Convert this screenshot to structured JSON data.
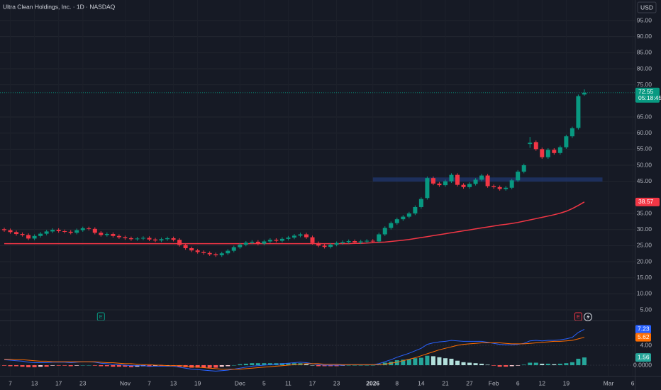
{
  "chart_data": {
    "type": "candlestick",
    "title": "Ultra Clean Holdings, Inc. · 1D · NASDAQ",
    "currency": "USD",
    "countdown": "05:18:45",
    "categories": [
      null,
      "7",
      null,
      null,
      null,
      "13",
      null,
      null,
      null,
      "17",
      null,
      null,
      null,
      "23",
      null,
      null,
      null,
      null,
      null,
      null,
      "Nov",
      null,
      null,
      null,
      "7",
      null,
      null,
      null,
      "13",
      null,
      null,
      null,
      "19",
      null,
      null,
      null,
      null,
      null,
      null,
      "Dec",
      null,
      null,
      null,
      "5",
      null,
      null,
      null,
      "11",
      null,
      null,
      null,
      "17",
      null,
      null,
      null,
      "23",
      null,
      null,
      null,
      null,
      null,
      "2026",
      null,
      null,
      null,
      "8",
      null,
      null,
      null,
      "14",
      null,
      null,
      null,
      "21",
      null,
      null,
      null,
      "27",
      null,
      null,
      null,
      "Feb",
      null,
      null,
      null,
      "6",
      null,
      null,
      null,
      "12",
      null,
      null,
      null,
      "19",
      null,
      null,
      null,
      null,
      null,
      null,
      "Mar",
      null,
      null,
      null,
      "6"
    ],
    "open": [
      30.1,
      29.8,
      29.2,
      28.6,
      28.3,
      27.2,
      28.0,
      28.7,
      29.4,
      29.9,
      29.5,
      29.3,
      29.0,
      29.8,
      30.4,
      30.2,
      29.0,
      28.3,
      28.6,
      28.0,
      27.6,
      27.3,
      27.0,
      27.2,
      27.4,
      26.9,
      26.6,
      27.0,
      27.3,
      26.8,
      25.2,
      24.2,
      23.5,
      23.0,
      22.7,
      22.3,
      22.0,
      22.6,
      23.4,
      24.5,
      25.3,
      25.9,
      26.2,
      25.6,
      26.3,
      26.8,
      26.5,
      27.1,
      27.5,
      28.1,
      28.5,
      27.6,
      25.8,
      25.0,
      24.6,
      25.3,
      25.8,
      26.1,
      26.4,
      26.0,
      26.3,
      26.5,
      26.3,
      28.5,
      30.5,
      32.0,
      33.2,
      34.0,
      35.0,
      37.0,
      39.8,
      46.0,
      44.3,
      43.8,
      45.0,
      47.0,
      43.9,
      43.2,
      44.2,
      45.5,
      46.8,
      43.5,
      43.2,
      42.6,
      43.0,
      45.3,
      48.0,
      56.6,
      57.2,
      55.0,
      52.5,
      54.8,
      53.8,
      55.6,
      59.0,
      61.6,
      72.0,
      null,
      null,
      null,
      null,
      null,
      null,
      null,
      null
    ],
    "high": [
      30.6,
      30.3,
      29.7,
      29.1,
      28.8,
      28.5,
      29.2,
      29.9,
      30.4,
      30.4,
      30.0,
      29.8,
      30.3,
      30.9,
      30.9,
      30.7,
      29.5,
      29.1,
      29.1,
      28.5,
      28.1,
      27.8,
      27.7,
      27.9,
      27.9,
      27.4,
      27.5,
      27.8,
      27.8,
      27.3,
      25.7,
      24.7,
      24.0,
      23.5,
      23.2,
      22.8,
      23.1,
      23.9,
      25.0,
      25.8,
      26.4,
      26.7,
      26.7,
      26.8,
      27.3,
      27.3,
      27.6,
      28.0,
      28.6,
      29.0,
      29.0,
      28.1,
      26.3,
      25.5,
      25.8,
      26.3,
      26.6,
      26.9,
      26.9,
      26.8,
      27.0,
      27.0,
      29.0,
      31.0,
      32.5,
      33.7,
      34.5,
      35.5,
      37.5,
      40.0,
      46.5,
      46.5,
      44.8,
      45.5,
      47.5,
      47.5,
      44.4,
      44.7,
      46.0,
      47.3,
      47.3,
      44.0,
      43.7,
      43.5,
      45.8,
      48.5,
      50.5,
      58.8,
      57.7,
      55.5,
      55.3,
      55.3,
      56.1,
      59.5,
      62.0,
      72.0,
      73.6,
      null,
      null,
      null,
      null,
      null,
      null,
      null,
      null
    ],
    "low": [
      29.3,
      28.7,
      28.1,
      27.8,
      26.7,
      26.7,
      27.5,
      28.2,
      28.9,
      29.0,
      28.8,
      28.5,
      28.5,
      29.3,
      29.7,
      28.5,
      27.8,
      27.8,
      27.5,
      27.1,
      26.8,
      26.5,
      26.5,
      26.7,
      26.4,
      26.1,
      26.1,
      26.5,
      26.3,
      24.7,
      23.7,
      23.0,
      22.5,
      22.2,
      21.8,
      21.5,
      21.5,
      22.1,
      22.9,
      24.0,
      24.8,
      25.4,
      25.1,
      25.1,
      25.8,
      26.0,
      26.0,
      26.6,
      27.0,
      27.6,
      27.1,
      25.3,
      24.5,
      24.1,
      24.1,
      24.8,
      25.3,
      25.6,
      25.5,
      25.5,
      25.8,
      25.8,
      25.8,
      28.0,
      30.0,
      31.5,
      32.7,
      33.5,
      34.5,
      36.5,
      39.3,
      43.8,
      43.3,
      43.3,
      44.5,
      43.4,
      42.7,
      42.7,
      43.7,
      45.0,
      43.0,
      42.7,
      42.1,
      42.1,
      42.5,
      44.8,
      47.5,
      55.4,
      54.5,
      52.0,
      52.0,
      53.3,
      53.3,
      55.1,
      58.5,
      61.1,
      71.6,
      null,
      null,
      null,
      null,
      null,
      null,
      null,
      null
    ],
    "close": [
      29.8,
      29.2,
      28.6,
      28.3,
      27.2,
      28.0,
      28.7,
      29.4,
      29.9,
      29.5,
      29.3,
      29.0,
      29.8,
      30.4,
      30.2,
      29.0,
      28.3,
      28.6,
      28.0,
      27.6,
      27.3,
      27.0,
      27.2,
      27.4,
      26.9,
      26.6,
      27.0,
      27.3,
      26.8,
      25.2,
      24.2,
      23.5,
      23.0,
      22.7,
      22.3,
      22.0,
      22.6,
      23.4,
      24.5,
      25.3,
      25.9,
      26.2,
      25.6,
      26.3,
      26.8,
      26.5,
      27.1,
      27.5,
      28.1,
      28.5,
      27.6,
      25.8,
      25.0,
      24.6,
      25.3,
      25.8,
      26.1,
      26.4,
      26.0,
      26.3,
      26.5,
      26.3,
      28.5,
      30.5,
      32.0,
      33.2,
      34.0,
      35.0,
      37.0,
      39.5,
      46.0,
      44.3,
      43.8,
      45.0,
      47.0,
      43.9,
      43.2,
      44.2,
      45.5,
      46.8,
      43.5,
      43.2,
      42.6,
      43.0,
      45.3,
      48.0,
      50.0,
      57.0,
      55.0,
      52.5,
      54.8,
      53.8,
      55.6,
      59.0,
      61.5,
      71.5,
      72.55,
      null,
      null,
      null,
      null,
      null,
      null,
      null,
      null
    ],
    "up_color": "#089981",
    "down_color": "#f23645",
    "ylim": [
      1.7,
      101.4
    ],
    "yticks": [
      {
        "value": 5,
        "label": "5.00"
      },
      {
        "value": 10,
        "label": "10.00"
      },
      {
        "value": 15,
        "label": "15.00"
      },
      {
        "value": 20,
        "label": "20.00"
      },
      {
        "value": 25,
        "label": "25.00"
      },
      {
        "value": 30,
        "label": "30.00"
      },
      {
        "value": 35,
        "label": "35.00"
      },
      {
        "value": 45,
        "label": "45.00"
      },
      {
        "value": 50,
        "label": "50.00"
      },
      {
        "value": 55,
        "label": "55.00"
      },
      {
        "value": 60,
        "label": "60.00"
      },
      {
        "value": 65,
        "label": "65.00"
      },
      {
        "value": 75,
        "label": "75.00"
      },
      {
        "value": 80,
        "label": "80.00"
      },
      {
        "value": 85,
        "label": "85.00"
      },
      {
        "value": 90,
        "label": "90.00"
      },
      {
        "value": 95,
        "label": "95.00"
      }
    ],
    "grid": true,
    "ma": {
      "color": "#f23645",
      "values": [
        25.6,
        25.6,
        25.6,
        25.6,
        25.6,
        25.6,
        25.6,
        25.6,
        25.6,
        25.6,
        25.6,
        25.6,
        25.6,
        25.6,
        25.6,
        25.6,
        25.6,
        25.6,
        25.6,
        25.6,
        25.6,
        25.6,
        25.6,
        25.6,
        25.6,
        25.6,
        25.6,
        25.6,
        25.6,
        25.6,
        25.6,
        25.6,
        25.6,
        25.6,
        25.6,
        25.6,
        25.6,
        25.6,
        25.6,
        25.6,
        25.6,
        25.6,
        25.6,
        25.6,
        25.6,
        25.6,
        25.6,
        25.6,
        25.6,
        25.6,
        25.6,
        25.6,
        25.6,
        25.6,
        25.6,
        25.6,
        25.6,
        25.6,
        25.7,
        25.7,
        25.8,
        25.9,
        26.0,
        26.1,
        26.3,
        26.5,
        26.7,
        26.9,
        27.2,
        27.5,
        27.8,
        28.1,
        28.4,
        28.7,
        29.0,
        29.3,
        29.6,
        29.9,
        30.2,
        30.5,
        30.8,
        31.1,
        31.4,
        31.6,
        31.9,
        32.2,
        32.6,
        33.0,
        33.4,
        33.8,
        34.2,
        34.6,
        35.1,
        35.7,
        36.5,
        37.5,
        38.57,
        null,
        null,
        null,
        null,
        null,
        null,
        null,
        null
      ]
    },
    "zone": {
      "low": 44.9,
      "high": 46.2,
      "start": 61,
      "end": 99,
      "color": "#1f3466"
    },
    "events": [
      {
        "label": "E",
        "index": 16,
        "color": "#089981"
      },
      {
        "label": "E",
        "index": 95,
        "color": "#f23645"
      }
    ],
    "macd": {
      "ylim": [
        -2.14,
        8.57
      ],
      "yticks": [
        {
          "value": 4,
          "label": "4.00"
        },
        {
          "value": 0,
          "label": "0.0000"
        }
      ],
      "series": [
        {
          "color": "#2962ff",
          "values": [
            1.1,
            1.0,
            0.9,
            0.8,
            0.6,
            0.5,
            0.5,
            0.5,
            0.6,
            0.6,
            0.6,
            0.5,
            0.6,
            0.7,
            0.7,
            0.6,
            0.4,
            0.3,
            0.2,
            0.1,
            0.0,
            -0.1,
            -0.1,
            -0.1,
            -0.2,
            -0.2,
            -0.2,
            -0.2,
            -0.2,
            -0.4,
            -0.6,
            -0.8,
            -0.9,
            -1.0,
            -1.1,
            -1.2,
            -1.1,
            -1.0,
            -0.8,
            -0.6,
            -0.4,
            -0.2,
            -0.1,
            0.0,
            0.1,
            0.2,
            0.3,
            0.4,
            0.5,
            0.6,
            0.5,
            0.3,
            0.1,
            0.0,
            0.0,
            0.0,
            0.0,
            0.1,
            0.1,
            0.1,
            0.1,
            0.1,
            0.3,
            0.7,
            1.1,
            1.6,
            2.0,
            2.4,
            2.9,
            3.4,
            4.2,
            4.5,
            4.7,
            4.8,
            5.0,
            4.9,
            4.8,
            4.8,
            4.8,
            4.8,
            4.6,
            4.4,
            4.2,
            4.1,
            4.1,
            4.2,
            4.4,
            4.9,
            5.0,
            4.9,
            5.0,
            5.0,
            5.1,
            5.3,
            5.6,
            6.6,
            7.23,
            null,
            null,
            null,
            null,
            null,
            null,
            null,
            null
          ]
        },
        {
          "color": "#ff6d00",
          "values": [
            1.2,
            1.2,
            1.1,
            1.1,
            1.0,
            0.9,
            0.8,
            0.8,
            0.7,
            0.7,
            0.7,
            0.7,
            0.7,
            0.7,
            0.7,
            0.7,
            0.6,
            0.5,
            0.5,
            0.4,
            0.3,
            0.3,
            0.2,
            0.1,
            0.1,
            0.0,
            0.0,
            -0.1,
            -0.1,
            -0.1,
            -0.2,
            -0.3,
            -0.4,
            -0.5,
            -0.6,
            -0.7,
            -0.8,
            -0.8,
            -0.8,
            -0.8,
            -0.7,
            -0.6,
            -0.5,
            -0.4,
            -0.3,
            -0.2,
            -0.1,
            0.0,
            0.1,
            0.2,
            0.3,
            0.3,
            0.3,
            0.2,
            0.2,
            0.2,
            0.1,
            0.1,
            0.1,
            0.1,
            0.1,
            0.1,
            0.1,
            0.2,
            0.4,
            0.6,
            0.9,
            1.2,
            1.5,
            1.9,
            2.3,
            2.7,
            3.1,
            3.4,
            3.7,
            4.0,
            4.2,
            4.3,
            4.4,
            4.5,
            4.5,
            4.5,
            4.5,
            4.4,
            4.3,
            4.3,
            4.3,
            4.4,
            4.5,
            4.6,
            4.7,
            4.8,
            4.8,
            4.9,
            5.0,
            5.3,
            5.62,
            null,
            null,
            null,
            null,
            null,
            null,
            null,
            null
          ]
        }
      ],
      "histogram": {
        "colors": [
          "#26a69a",
          "#b2dfdb",
          "#ff5252",
          "#ffcdd2"
        ],
        "values": [
          -0.1,
          -0.2,
          -0.2,
          -0.3,
          -0.4,
          -0.4,
          -0.3,
          -0.3,
          -0.1,
          -0.1,
          -0.1,
          -0.2,
          -0.1,
          0.0,
          0.0,
          -0.1,
          -0.2,
          -0.2,
          -0.3,
          -0.3,
          -0.3,
          -0.4,
          -0.3,
          -0.2,
          -0.3,
          -0.2,
          -0.2,
          -0.1,
          -0.1,
          -0.3,
          -0.4,
          -0.5,
          -0.5,
          -0.5,
          -0.5,
          -0.5,
          -0.3,
          -0.2,
          0.0,
          0.2,
          0.3,
          0.4,
          0.4,
          0.4,
          0.4,
          0.4,
          0.4,
          0.4,
          0.4,
          0.4,
          0.2,
          0.0,
          -0.2,
          -0.2,
          -0.2,
          -0.2,
          -0.1,
          0.0,
          0.0,
          0.0,
          0.0,
          0.0,
          0.2,
          0.5,
          0.7,
          1.0,
          1.1,
          1.2,
          1.4,
          1.5,
          1.9,
          1.8,
          1.6,
          1.4,
          1.3,
          0.9,
          0.6,
          0.5,
          0.4,
          0.3,
          0.1,
          -0.1,
          -0.3,
          -0.3,
          -0.2,
          -0.1,
          0.1,
          0.5,
          0.5,
          0.3,
          0.3,
          0.2,
          0.3,
          0.4,
          0.6,
          1.3,
          1.56,
          null,
          null,
          null,
          null,
          null,
          null,
          null,
          null
        ]
      }
    }
  }
}
